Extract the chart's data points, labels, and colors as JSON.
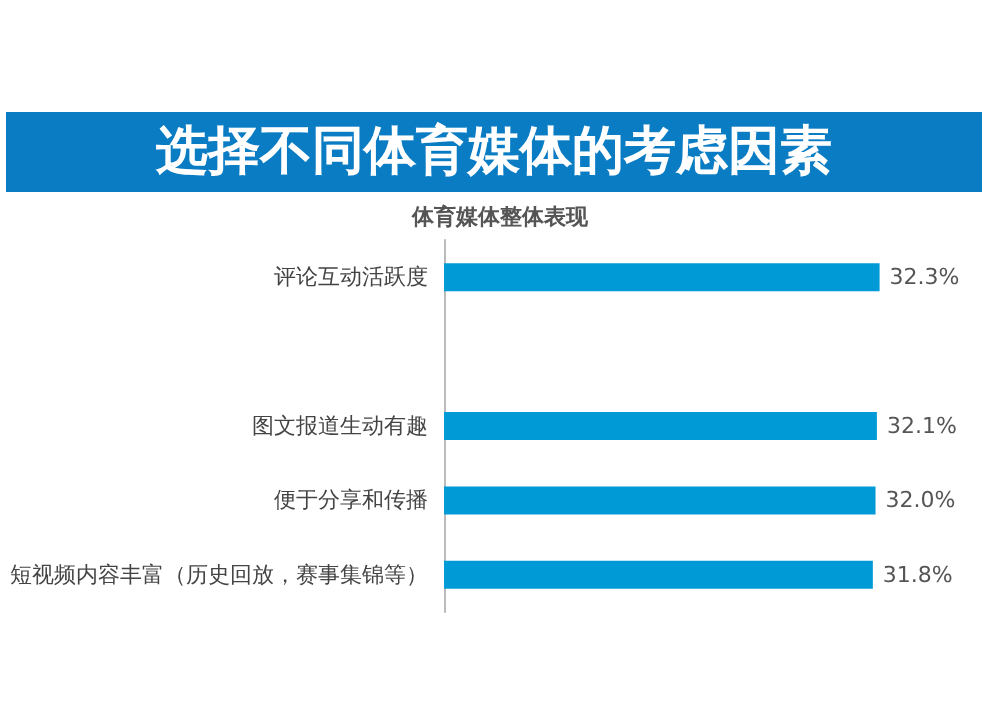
{
  "chart_data": {
    "type": "bar",
    "orientation": "horizontal",
    "title": "选择不同体育媒体的考虑因素",
    "subtitle": "体育媒体整体表现",
    "categories": [
      "评论互动活跃度",
      null,
      "图文报道生动有趣",
      "便于分享和传播",
      "短视频内容丰富（历史回放，赛事集锦等）"
    ],
    "values": [
      32.3,
      null,
      32.1,
      32.0,
      31.8
    ],
    "value_labels": [
      "32.3%",
      null,
      "32.1%",
      "32.0%",
      "31.8%"
    ],
    "color": "#009ad6",
    "tick_labels": "y",
    "grid": false
  }
}
